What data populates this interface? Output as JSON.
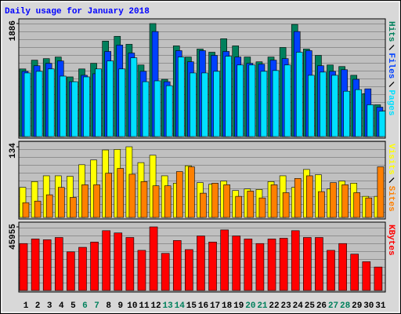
{
  "chart_data": [
    {
      "type": "bar",
      "title": "Daily usage for January 2018",
      "ylim": [
        0,
        1886
      ],
      "yticks": [
        1886
      ],
      "series": [
        {
          "name": "Hits",
          "color": "#00805c",
          "values": [
            1129,
            1275,
            1301,
            1328,
            996,
            1129,
            1222,
            1594,
            1673,
            1540,
            1195,
            1886,
            956,
            1514,
            1328,
            1461,
            1408,
            1633,
            1514,
            1328,
            1248,
            1328,
            1487,
            1872,
            1461,
            1355,
            1195,
            1169,
            1023,
            717,
            531
          ]
        },
        {
          "name": "Files",
          "color": "#0040ff",
          "values": [
            1089,
            1182,
            1222,
            1262,
            916,
            1023,
            1049,
            1421,
            1527,
            1394,
            1089,
            1753,
            916,
            1434,
            1248,
            1434,
            1355,
            1421,
            1328,
            1222,
            1208,
            1275,
            1301,
            1753,
            1434,
            1182,
            1089,
            1116,
            956,
            797,
            491
          ]
        },
        {
          "name": "Pages",
          "color": "#00e0ff",
          "values": [
            1062,
            1089,
            1129,
            1009,
            916,
            996,
            1129,
            1262,
            1129,
            1315,
            916,
            930,
            850,
            1328,
            1062,
            1062,
            1089,
            1341,
            1195,
            1195,
            1089,
            1102,
            1195,
            1408,
            1023,
            1076,
            1023,
            757,
            784,
            531,
            425
          ]
        }
      ]
    },
    {
      "type": "bar",
      "ylim": [
        0,
        134
      ],
      "yticks": [
        134
      ],
      "series": [
        {
          "name": "Visits",
          "color": "#ffff00",
          "values": [
            57,
            68,
            79,
            79,
            78,
            100,
            109,
            128,
            129,
            134,
            104,
            118,
            79,
            65,
            98,
            66,
            63,
            69,
            51,
            54,
            53,
            68,
            79,
            57,
            91,
            81,
            54,
            69,
            65,
            40,
            40
          ]
        },
        {
          "name": "Sites",
          "color": "#ff8000",
          "values": [
            28,
            31,
            43,
            57,
            38,
            62,
            62,
            84,
            93,
            82,
            68,
            60,
            60,
            87,
            96,
            46,
            65,
            62,
            40,
            50,
            37,
            62,
            47,
            74,
            79,
            49,
            66,
            62,
            47,
            37,
            96
          ]
        }
      ]
    },
    {
      "type": "bar",
      "ylim": [
        0,
        45955
      ],
      "yticks": [
        45955
      ],
      "categories": [
        "1",
        "2",
        "3",
        "4",
        "5",
        "6",
        "7",
        "8",
        "9",
        "10",
        "11",
        "12",
        "13",
        "14",
        "15",
        "16",
        "17",
        "18",
        "19",
        "20",
        "21",
        "22",
        "23",
        "24",
        "25",
        "26",
        "27",
        "28",
        "29",
        "30",
        "31"
      ],
      "category_colors": [
        "#000000",
        "#000000",
        "#000000",
        "#000000",
        "#000000",
        "#00805c",
        "#00805c",
        "#000000",
        "#000000",
        "#000000",
        "#000000",
        "#000000",
        "#00805c",
        "#00805c",
        "#000000",
        "#000000",
        "#000000",
        "#000000",
        "#000000",
        "#00805c",
        "#00805c",
        "#000000",
        "#000000",
        "#000000",
        "#000000",
        "#000000",
        "#00805c",
        "#00805c",
        "#000000",
        "#000000",
        "#000000"
      ],
      "series": [
        {
          "name": "KBytes",
          "color": "#ff0000",
          "values": [
            33914,
            37196,
            36649,
            38290,
            27897,
            31179,
            35008,
            43213,
            41572,
            38290,
            28991,
            45955,
            26803,
            36102,
            29538,
            39384,
            35008,
            43760,
            39384,
            37196,
            33914,
            37196,
            37743,
            43213,
            38290,
            38290,
            28991,
            33914,
            26256,
            20786,
            16957
          ]
        }
      ]
    }
  ]
}
